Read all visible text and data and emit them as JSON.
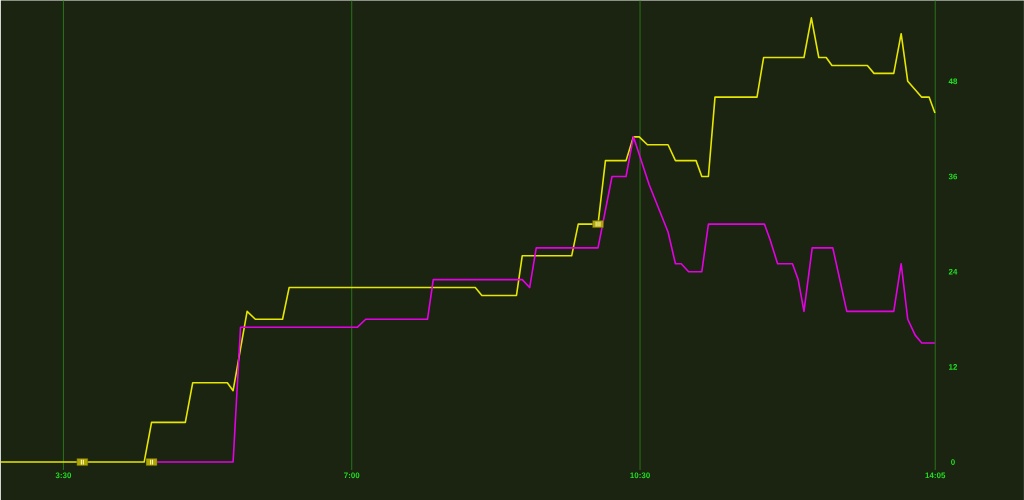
{
  "chart_data": {
    "type": "line",
    "xlim": [
      2.74,
      15.16
    ],
    "ylim": [
      -1,
      58.2
    ],
    "xticks": [
      {
        "value": 3.5,
        "label": "3:30"
      },
      {
        "value": 7,
        "label": "7:00"
      },
      {
        "value": 10.5,
        "label": "10:30"
      },
      {
        "value": 14.0833,
        "label": "14:05"
      }
    ],
    "yticks": [
      0,
      12,
      24,
      36,
      48
    ],
    "grid": "x",
    "marker": "none",
    "line_style": "solid",
    "series": [
      {
        "color": "#e6e600",
        "x": [
          2.74,
          4.48,
          4.57,
          4.98,
          5.07,
          5.49,
          5.56,
          5.73,
          5.83,
          6.16,
          6.24,
          8.5,
          8.58,
          9.0,
          9.07,
          9.67,
          9.75,
          9.99,
          10.08,
          10.33,
          10.42,
          10.49,
          10.59,
          10.84,
          10.93,
          11.18,
          11.25,
          11.33,
          11.41,
          11.92,
          12.0,
          12.49,
          12.58,
          12.67,
          12.76,
          12.83,
          13.26,
          13.34,
          13.58,
          13.67,
          13.75,
          13.92,
          14.01,
          14.08
        ],
        "values": [
          0,
          0,
          5,
          5,
          10,
          10,
          9,
          19,
          18,
          18,
          22,
          22,
          21,
          21,
          26,
          26,
          30,
          30,
          38,
          38,
          41,
          41,
          40,
          40,
          38,
          38,
          36,
          36,
          46,
          46,
          51,
          51,
          56,
          51,
          51,
          50,
          50,
          49,
          49,
          54,
          48,
          46,
          46,
          44
        ]
      },
      {
        "color": "#e600e6",
        "x": [
          4.57,
          5.56,
          5.65,
          7.07,
          7.17,
          7.92,
          7.99,
          9.07,
          9.16,
          9.24,
          9.99,
          10.16,
          10.33,
          10.42,
          10.61,
          10.84,
          10.93,
          11.0,
          11.09,
          11.25,
          11.33,
          12.01,
          12.08,
          12.17,
          12.35,
          12.42,
          12.49,
          12.59,
          12.84,
          13.01,
          13.58,
          13.67,
          13.75,
          13.84,
          13.92,
          14.08
        ],
        "values": [
          0,
          0,
          17,
          17,
          18,
          18,
          23,
          23,
          22,
          27,
          27,
          36,
          36,
          41,
          35,
          29,
          25,
          25,
          24,
          24,
          30,
          30,
          28,
          25,
          25,
          23,
          19,
          27,
          27,
          19,
          19,
          25,
          18,
          16,
          15,
          15
        ]
      }
    ],
    "annotations": [
      {
        "text": "II",
        "x": 3.73,
        "y": 0
      },
      {
        "text": "II",
        "x": 4.57,
        "y": 0
      },
      {
        "text": "III",
        "x": 9.99,
        "y": 30
      }
    ]
  }
}
